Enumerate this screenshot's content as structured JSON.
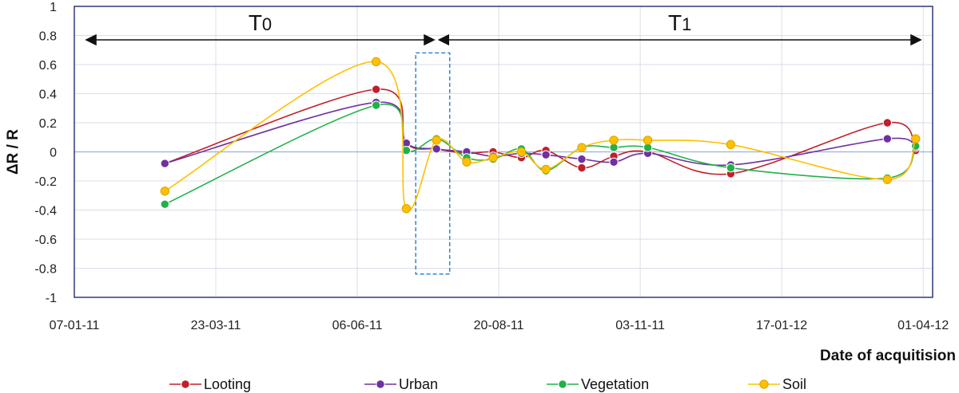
{
  "chart_data": {
    "type": "line",
    "title": "",
    "xlabel": "Date of acquitision",
    "ylabel": "ΔR / R",
    "ylim": [
      -1,
      1
    ],
    "yticks": [
      -1,
      -0.8,
      -0.6,
      -0.4,
      -0.2,
      0,
      0.2,
      0.4,
      0.6,
      0.8,
      1
    ],
    "ytick_labels": [
      "-1",
      "-0.8",
      "-0.6",
      "-0.4",
      "-0.2",
      "0",
      "0.2",
      "0.4",
      "0.6",
      "0.8",
      "1"
    ],
    "xlim_days": [
      0,
      455
    ],
    "xtick_days": [
      0,
      75,
      150,
      225,
      300,
      375,
      450
    ],
    "xtick_labels": [
      "07-01-11",
      "23-03-11",
      "06-06-11",
      "20-08-11",
      "03-11-11",
      "17-01-12",
      "01-04-12"
    ],
    "grid": true,
    "x": [
      48,
      160,
      176,
      192,
      208,
      222,
      237,
      250,
      269,
      286,
      304,
      348,
      431,
      446
    ],
    "series": [
      {
        "name": "Looting",
        "color": "#c0202a",
        "values": [
          -0.08,
          0.43,
          0.06,
          0.02,
          -0.01,
          0.0,
          -0.04,
          0.01,
          -0.11,
          -0.03,
          0.0,
          -0.15,
          0.2,
          0.01
        ]
      },
      {
        "name": "Urban",
        "color": "#7030a0",
        "values": [
          -0.08,
          0.34,
          0.06,
          0.02,
          0.0,
          -0.03,
          -0.01,
          -0.02,
          -0.05,
          -0.07,
          -0.01,
          -0.09,
          0.09,
          0.03
        ]
      },
      {
        "name": "Vegetation",
        "color": "#21b14b",
        "values": [
          -0.36,
          0.32,
          0.01,
          0.09,
          -0.04,
          -0.05,
          0.02,
          -0.13,
          0.03,
          0.03,
          0.03,
          -0.11,
          -0.18,
          0.04
        ]
      },
      {
        "name": "Soil",
        "color": "#ffc000",
        "values": [
          -0.27,
          0.62,
          -0.39,
          0.08,
          -0.07,
          -0.04,
          0.0,
          -0.12,
          0.03,
          0.08,
          0.08,
          0.05,
          -0.19,
          0.09
        ]
      }
    ],
    "annotations": {
      "periods": [
        {
          "label": "T",
          "subscript": "0",
          "start_day": 5,
          "end_day": 192
        },
        {
          "label": "T",
          "subscript": "1",
          "start_day": 192,
          "end_day": 450
        }
      ],
      "highlight_box": {
        "start_day": 181,
        "end_day": 199,
        "y_top": 0.68,
        "y_bottom": -0.84
      }
    },
    "legend_position": "bottom"
  }
}
